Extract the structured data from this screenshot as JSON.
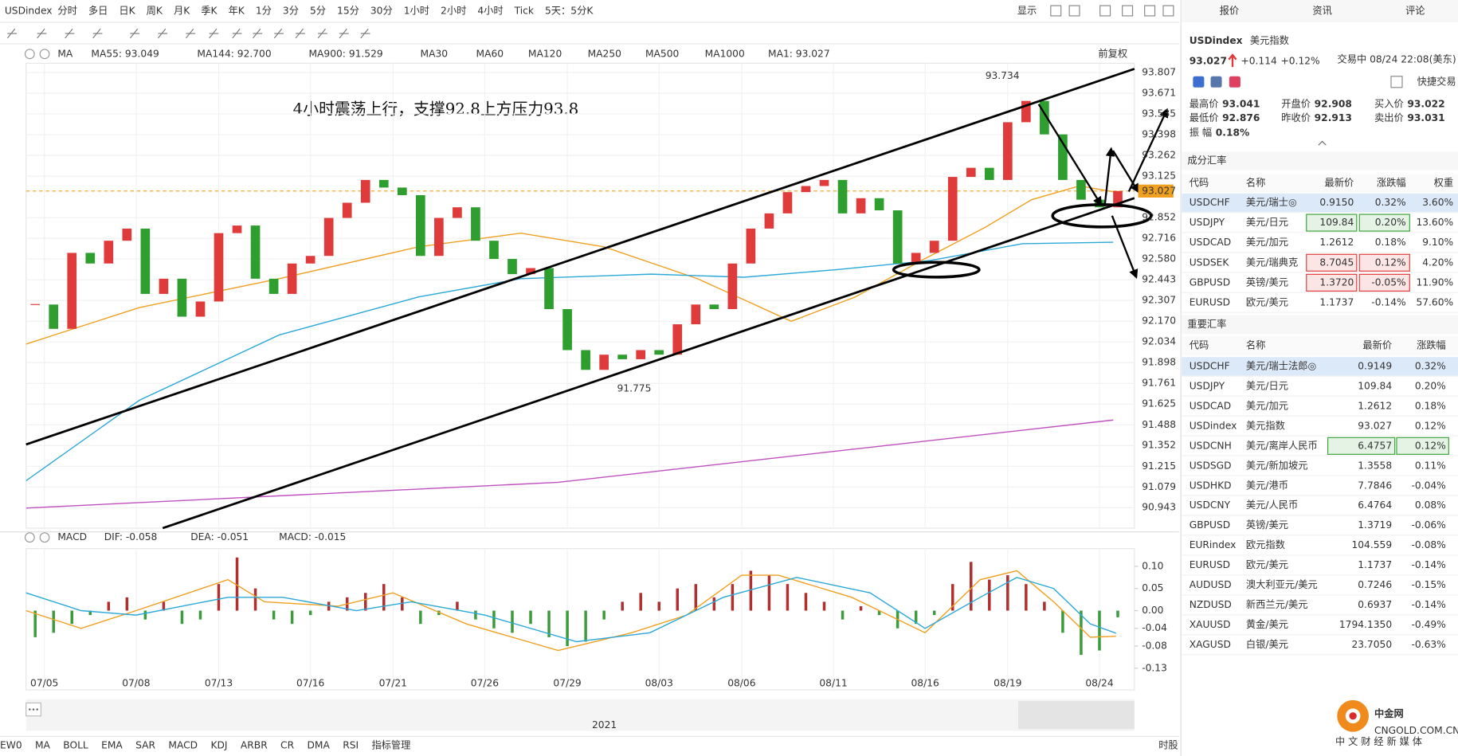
{
  "toolbar": {
    "symbol": "USDindex",
    "periods": [
      "分时",
      "多日",
      "日K",
      "周K",
      "月K",
      "季K",
      "年K",
      "1分",
      "3分",
      "5分",
      "15分",
      "30分",
      "1小时",
      "2小时",
      {
        "label": "4小时",
        "color": "#f39c12"
      },
      "Tick",
      "5天：5分K"
    ],
    "display": "显示"
  },
  "indicator_bar": {
    "label": "MA",
    "items": [
      {
        "label": "MA55: 93.049",
        "color": "#f0a020"
      },
      {
        "label": "MA144: 92.700",
        "color": "#2aa8d8"
      },
      {
        "label": "MA900: 91.529",
        "color": "#c050c0"
      },
      {
        "label": "MA30",
        "color": "#b9d3ec"
      },
      {
        "label": "MA60",
        "color": "#bfe0b8"
      },
      {
        "label": "MA120",
        "color": "#f2c6c6"
      },
      {
        "label": "MA250",
        "color": "#bfe6ee"
      },
      {
        "label": "MA500",
        "color": "#f5dea0"
      },
      {
        "label": "MA1000",
        "color": "#c8c8c8"
      },
      {
        "label": "MA1: 93.027",
        "color": "#555555"
      }
    ],
    "adjust": "前复权"
  },
  "chart_data": [
    {
      "type": "candlestick",
      "annotation": "4小时震荡上行，支撑92.8上方压力93.8",
      "high": 93.734,
      "low": 91.775,
      "current": 93.027,
      "current_color": "#f0a020",
      "up_color": "#e03b3b",
      "down_color": "#2e9e2e",
      "xlim": [
        0,
        60
      ],
      "xticks": [
        {
          "value": 1,
          "label": "07/05"
        },
        {
          "value": 6,
          "label": "07/08"
        },
        {
          "value": 10.5,
          "label": "07/13"
        },
        {
          "value": 15.5,
          "label": "07/16"
        },
        {
          "value": 20,
          "label": "07/21"
        },
        {
          "value": 25,
          "label": "07/26"
        },
        {
          "value": 29.5,
          "label": "07/29"
        },
        {
          "value": 34.5,
          "label": "08/03"
        },
        {
          "value": 39,
          "label": "08/06"
        },
        {
          "value": 44,
          "label": "08/11"
        },
        {
          "value": 49,
          "label": "08/16"
        },
        {
          "value": 53.5,
          "label": "08/19"
        },
        {
          "value": 58.5,
          "label": "08/24"
        }
      ],
      "ylim": [
        90.808,
        93.868
      ],
      "yticks": [
        93.807,
        93.671,
        93.535,
        93.398,
        93.262,
        93.125,
        92.852,
        92.716,
        {
          "value": 92.58,
          "label": "92.580"
        },
        92.443,
        92.307,
        {
          "value": 92.17,
          "label": "92.170"
        },
        92.034,
        91.898,
        91.761,
        91.625,
        91.488,
        91.352,
        91.215,
        91.079,
        90.943
      ],
      "close": [
        92.28,
        92.12,
        92.62,
        92.55,
        92.7,
        92.78,
        92.35,
        92.45,
        92.2,
        92.3,
        92.75,
        92.8,
        92.45,
        92.35,
        92.55,
        92.6,
        92.85,
        92.95,
        93.1,
        93.05,
        93.0,
        92.6,
        92.85,
        92.92,
        92.7,
        92.58,
        92.48,
        92.52,
        92.25,
        91.98,
        91.85,
        91.95,
        91.92,
        91.98,
        91.95,
        92.15,
        92.28,
        92.25,
        92.55,
        92.78,
        92.88,
        93.02,
        93.06,
        93.1,
        92.88,
        92.98,
        92.9,
        92.55,
        92.62,
        92.7,
        93.12,
        93.18,
        93.1,
        93.48,
        93.62,
        93.4,
        93.1,
        92.97,
        92.92,
        93.027
      ],
      "series": [
        {
          "color": "#f0a020",
          "x": [
            0,
            6.18,
            13.8,
            21.4,
            26.96,
            31.5,
            36.6,
            41.7,
            45.2,
            48.8,
            52.3,
            54.8,
            57.4,
            59.4
          ],
          "values": [
            92.02,
            92.26,
            92.45,
            92.66,
            92.75,
            92.66,
            92.45,
            92.17,
            92.33,
            92.57,
            92.79,
            92.97,
            93.06,
            93.02
          ]
        },
        {
          "color": "#2aa8d8",
          "x": [
            0,
            6.18,
            13.8,
            21.4,
            26.96,
            34.06,
            39.13,
            44.2,
            49.3,
            54.3,
            59.25
          ],
          "values": [
            91.12,
            91.65,
            92.08,
            92.33,
            92.45,
            92.48,
            92.46,
            92.51,
            92.57,
            92.68,
            92.69
          ]
        },
        {
          "color": "#c050c0",
          "x": [
            0,
            29,
            59.25
          ],
          "values": [
            90.94,
            91.11,
            91.52
          ]
        }
      ]
    },
    {
      "type": "macd",
      "label": "MACD",
      "legend": [
        {
          "label": "DIF: -0.058",
          "color": "#f0a020"
        },
        {
          "label": "DEA: -0.051",
          "color": "#2aa8d8"
        },
        {
          "label": "MACD: -0.015",
          "color": "#d050b0"
        }
      ],
      "xlim": [
        0,
        60
      ],
      "ylim": [
        -0.179,
        0.14
      ],
      "yticks": [
        {
          "value": 0.1,
          "label": "0.10"
        },
        0.05,
        {
          "value": 0,
          "label": "0.00"
        },
        -0.04,
        -0.08,
        -0.13
      ],
      "up_color": "#b03030",
      "down_color": "#3d9a3d",
      "histogram": [
        -0.06,
        -0.05,
        -0.03,
        -0.01,
        0.02,
        0.03,
        -0.02,
        0.02,
        -0.03,
        -0.02,
        0.06,
        0.12,
        0.05,
        -0.02,
        -0.03,
        -0.01,
        0.02,
        0.03,
        0.04,
        0.06,
        0.03,
        -0.03,
        -0.01,
        0.02,
        -0.02,
        -0.04,
        -0.05,
        -0.03,
        -0.06,
        -0.08,
        -0.07,
        -0.02,
        0.02,
        0.04,
        0.02,
        0.05,
        0.06,
        0.03,
        0.06,
        0.09,
        0.08,
        0.06,
        0.04,
        0.02,
        -0.02,
        0.01,
        -0.01,
        -0.04,
        -0.03,
        -0.01,
        0.06,
        0.11,
        0.07,
        0.08,
        0.06,
        0.02,
        -0.05,
        -0.1,
        -0.09,
        -0.015
      ],
      "series": [
        {
          "color": "#f0a020",
          "x": [
            0,
            3,
            6,
            11,
            13,
            17,
            20,
            24,
            29,
            33,
            36,
            39,
            41,
            45,
            49,
            52,
            54,
            56,
            58,
            59.4
          ],
          "values": [
            0.0,
            -0.04,
            0.0,
            0.07,
            0.02,
            0.01,
            0.04,
            -0.03,
            -0.09,
            -0.05,
            -0.01,
            0.08,
            0.08,
            0.03,
            -0.05,
            0.07,
            0.09,
            0.02,
            -0.06,
            -0.058
          ]
        },
        {
          "color": "#2aa8d8",
          "x": [
            0,
            3,
            6,
            11,
            14,
            18,
            21,
            25,
            30,
            34,
            38,
            42,
            46,
            49,
            52,
            54,
            56,
            58,
            59.4
          ],
          "values": [
            0.04,
            0.0,
            -0.01,
            0.03,
            0.03,
            0.0,
            0.02,
            -0.01,
            -0.07,
            -0.05,
            0.03,
            0.075,
            0.04,
            -0.04,
            0.03,
            0.075,
            0.05,
            -0.03,
            -0.051
          ]
        }
      ]
    }
  ],
  "timeline": {
    "year": "2021"
  },
  "indicator_tabs": [
    "EW0",
    {
      "label": "MA",
      "color": "#f39c12"
    },
    "BOLL",
    "EMA",
    "SAR",
    {
      "label": "MACD",
      "color": "#f39c12"
    },
    "KDJ",
    "ARBR",
    "CR",
    "DMA",
    "RSI",
    {
      "label": "指标管理",
      "color": "#f39c12"
    }
  ],
  "corner_tab": "时股",
  "quote": {
    "tabs": [
      "报价",
      "资讯",
      "评论"
    ],
    "code": "USDindex",
    "name": "美元指数",
    "price": "93.027",
    "change": "+0.114",
    "change_pct": "+0.12%",
    "status": "交易中 08/24 22:08(美东)",
    "quick": "快捷交易",
    "stats": [
      {
        "label": "最高价",
        "value": "93.041",
        "color": "#e03b3b"
      },
      {
        "label": "开盘价",
        "value": "92.908",
        "color": "#2e9e2e"
      },
      {
        "label": "买入价",
        "value": "93.022",
        "color": "#e03b3b"
      },
      {
        "label": "最低价",
        "value": "92.876",
        "color": "#2e9e2e"
      },
      {
        "label": "昨收价",
        "value": "92.913",
        "color": "#333333"
      },
      {
        "label": "卖出价",
        "value": "93.031",
        "color": "#e03b3b"
      },
      {
        "label": "振 幅",
        "value": "0.18%",
        "color": "#333333"
      }
    ]
  },
  "components": {
    "title": "成分汇率",
    "headers": [
      "代码",
      "名称",
      "最新价",
      "涨跌幅",
      "权重"
    ],
    "rows": [
      {
        "code": "USDCHF",
        "name": "美元/瑞士◎",
        "price": "0.9150",
        "change": "0.32%",
        "weight": "3.60%",
        "row_color": "#dce9f9"
      },
      {
        "code": "USDJPY",
        "name": "美元/日元",
        "price": "109.84",
        "change": "0.20%",
        "weight": "13.60%",
        "box_color": "#3aa33a"
      },
      {
        "code": "USDCAD",
        "name": "美元/加元",
        "price": "1.2612",
        "change": "0.18%",
        "weight": "9.10%"
      },
      {
        "code": "USDSEK",
        "name": "美元/瑞典克",
        "price": "8.7045",
        "change": "0.12%",
        "weight": "4.20%",
        "box_color": "#e03b3b"
      },
      {
        "code": "GBPUSD",
        "name": "英镑/美元",
        "price": "1.3720",
        "change": "-0.05%",
        "weight": "11.90%",
        "box_color": "#e03b3b"
      },
      {
        "code": "EURUSD",
        "name": "欧元/美元",
        "price": "1.1737",
        "change": "-0.14%",
        "weight": "57.60%"
      }
    ]
  },
  "major": {
    "title": "重要汇率",
    "headers": [
      "代码",
      "名称",
      "最新价",
      "涨跌幅"
    ],
    "rows": [
      {
        "code": "USDCHF",
        "name": "美元/瑞士法郎◎",
        "price": "0.9149",
        "change": "0.32%",
        "row_color": "#dce9f9"
      },
      {
        "code": "USDJPY",
        "name": "美元/日元",
        "price": "109.84",
        "change": "0.20%"
      },
      {
        "code": "USDCAD",
        "name": "美元/加元",
        "price": "1.2612",
        "change": "0.18%"
      },
      {
        "code": "USDindex",
        "name": "美元指数",
        "price": "93.027",
        "change": "0.12%"
      },
      {
        "code": "USDCNH",
        "name": "美元/离岸人民币",
        "price": "6.4757",
        "change": "0.12%",
        "box_color": "#3aa33a"
      },
      {
        "code": "USDSGD",
        "name": "美元/新加坡元",
        "price": "1.3558",
        "change": "0.11%"
      },
      {
        "code": "USDHKD",
        "name": "美元/港币",
        "price": "7.7846",
        "change": "-0.04%"
      },
      {
        "code": "USDCNY",
        "name": "美元/人民币",
        "price": "6.4764",
        "change": "0.08%"
      },
      {
        "code": "GBPUSD",
        "name": "英镑/美元",
        "price": "1.3719",
        "change": "-0.06%"
      },
      {
        "code": "EURindex",
        "name": "欧元指数",
        "price": "104.559",
        "change": "-0.08%"
      },
      {
        "code": "EURUSD",
        "name": "欧元/美元",
        "price": "1.1737",
        "change": "-0.14%"
      },
      {
        "code": "AUDUSD",
        "name": "澳大利亚元/美元",
        "price": "0.7246",
        "change": "-0.15%"
      },
      {
        "code": "NZDUSD",
        "name": "新西兰元/美元",
        "price": "0.6937",
        "change": "-0.14%"
      },
      {
        "code": "XAUUSD",
        "name": "黄金/美元",
        "price": "1794.1350",
        "change": "-0.49%"
      },
      {
        "code": "XAGUSD",
        "name": "白银/美元",
        "price": "23.7050",
        "change": "-0.63%"
      }
    ]
  },
  "logo": {
    "name": "中金网",
    "site": "CNGOLD.COM.CN",
    "slogan": "中 文 财 经 新 媒 体"
  }
}
